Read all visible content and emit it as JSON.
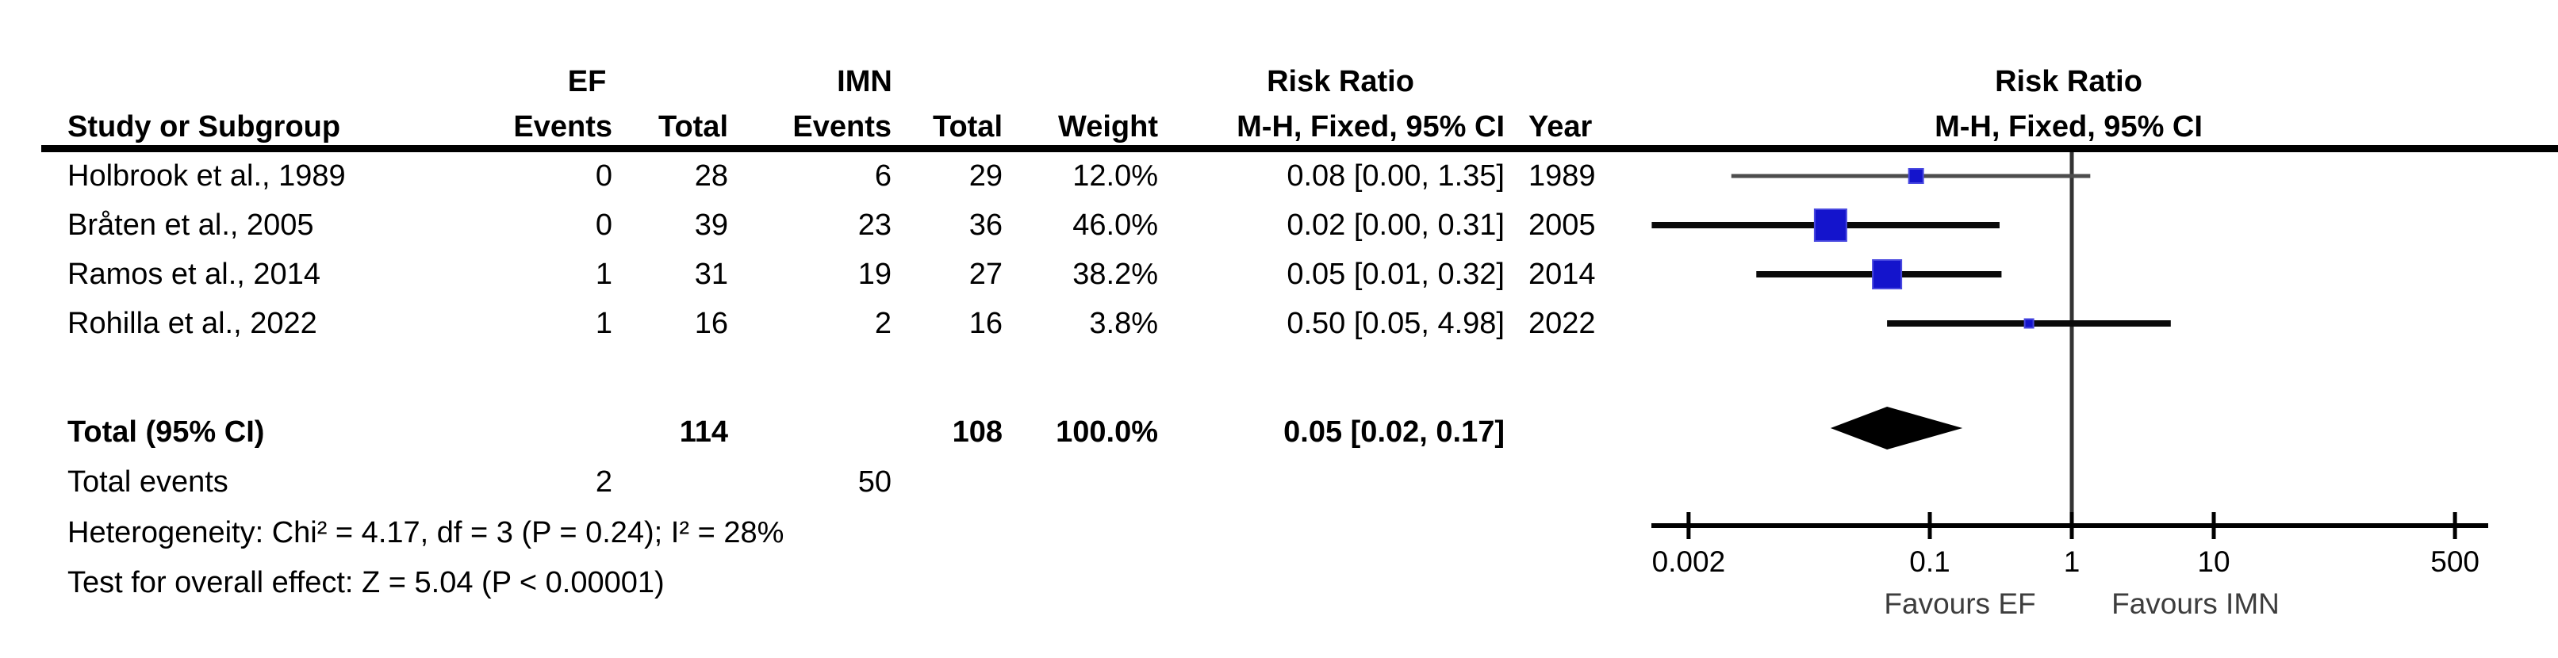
{
  "figure_type": "forest-plot (meta-analysis, M-H fixed effect, risk ratio)",
  "table": {
    "group_headers": {
      "ef": "EF",
      "imn": "IMN",
      "risk_ratio_text": "Risk Ratio",
      "risk_ratio_plot": "Risk Ratio"
    },
    "sub_headers": {
      "study": "Study or Subgroup",
      "ef_events": "Events",
      "ef_total": "Total",
      "imn_events": "Events",
      "imn_total": "Total",
      "weight": "Weight",
      "mh_fixed_ci": "M-H, Fixed, 95% CI",
      "year": "Year",
      "mh_fixed_ci_plot": "M-H, Fixed, 95% CI"
    },
    "total_row": {
      "label": "Total (95% CI)",
      "ef_total": "114",
      "imn_total": "108",
      "weight": "100.0%",
      "rr_text": "0.05 [0.02, 0.17]"
    },
    "total_events_row": {
      "label": "Total events",
      "ef_events": "2",
      "imn_events": "50"
    },
    "heterogeneity": "Heterogeneity: Chi² = 4.17, df = 3 (P = 0.24); I² = 28%",
    "overall_effect": "Test for overall effect: Z = 5.04 (P < 0.00001)"
  },
  "chart_data": {
    "type": "forest",
    "x_scale": "log10",
    "axis": {
      "ticks": [
        {
          "value": 0.002,
          "label": "0.002"
        },
        {
          "value": 0.1,
          "label": "0.1"
        },
        {
          "value": 1,
          "label": "1"
        },
        {
          "value": 10,
          "label": "10"
        },
        {
          "value": 500,
          "label": "500"
        }
      ],
      "x_range_drawn": [
        0.0011,
        860
      ],
      "null_value": 1,
      "left_label": "Favours EF",
      "right_label": "Favours IMN"
    },
    "studies": [
      {
        "label": "Holbrook et al., 1989",
        "ef_events": "0",
        "ef_total": "28",
        "imn_events": "6",
        "imn_total": "29",
        "weight": "12.0%",
        "weight_pct": 12.0,
        "rr_text": "0.08 [0.00, 1.35]",
        "year": "1989",
        "rr": 0.08,
        "ci_drawn": [
          0.004,
          1.35
        ],
        "marker_px": 18,
        "line_color": "#4d4d4d",
        "line_width": 5
      },
      {
        "label": "Bråten et al., 2005",
        "ef_events": "0",
        "ef_total": "39",
        "imn_events": "23",
        "imn_total": "36",
        "weight": "46.0%",
        "weight_pct": 46.0,
        "rr_text": "0.02 [0.00, 0.31]",
        "year": "2005",
        "rr": 0.02,
        "ci_drawn": [
          0.0011,
          0.31
        ],
        "marker_px": 40,
        "line_color": "#0a0a0a",
        "line_width": 8
      },
      {
        "label": "Ramos et al., 2014",
        "ef_events": "1",
        "ef_total": "31",
        "imn_events": "19",
        "imn_total": "27",
        "weight": "38.2%",
        "weight_pct": 38.2,
        "rr_text": "0.05 [0.01, 0.32]",
        "year": "2014",
        "rr": 0.05,
        "ci_drawn": [
          0.006,
          0.32
        ],
        "marker_px": 36,
        "line_color": "#0a0a0a",
        "line_width": 8
      },
      {
        "label": "Rohilla et al., 2022",
        "ef_events": "1",
        "ef_total": "16",
        "imn_events": "2",
        "imn_total": "16",
        "weight": "3.8%",
        "weight_pct": 3.8,
        "rr_text": "0.50 [0.05, 4.98]",
        "year": "2022",
        "rr": 0.5,
        "ci_drawn": [
          0.05,
          4.98
        ],
        "marker_px": 11,
        "line_color": "#0a0a0a",
        "line_width": 8
      }
    ],
    "total": {
      "rr": 0.05,
      "ci": [
        0.02,
        0.17
      ]
    }
  },
  "colors": {
    "marker_fill": "#1414CC",
    "marker_border": "#4848E0",
    "diamond": "#000000",
    "axis": "#000000",
    "null_line": "#333333",
    "header_rule": "#000000"
  }
}
